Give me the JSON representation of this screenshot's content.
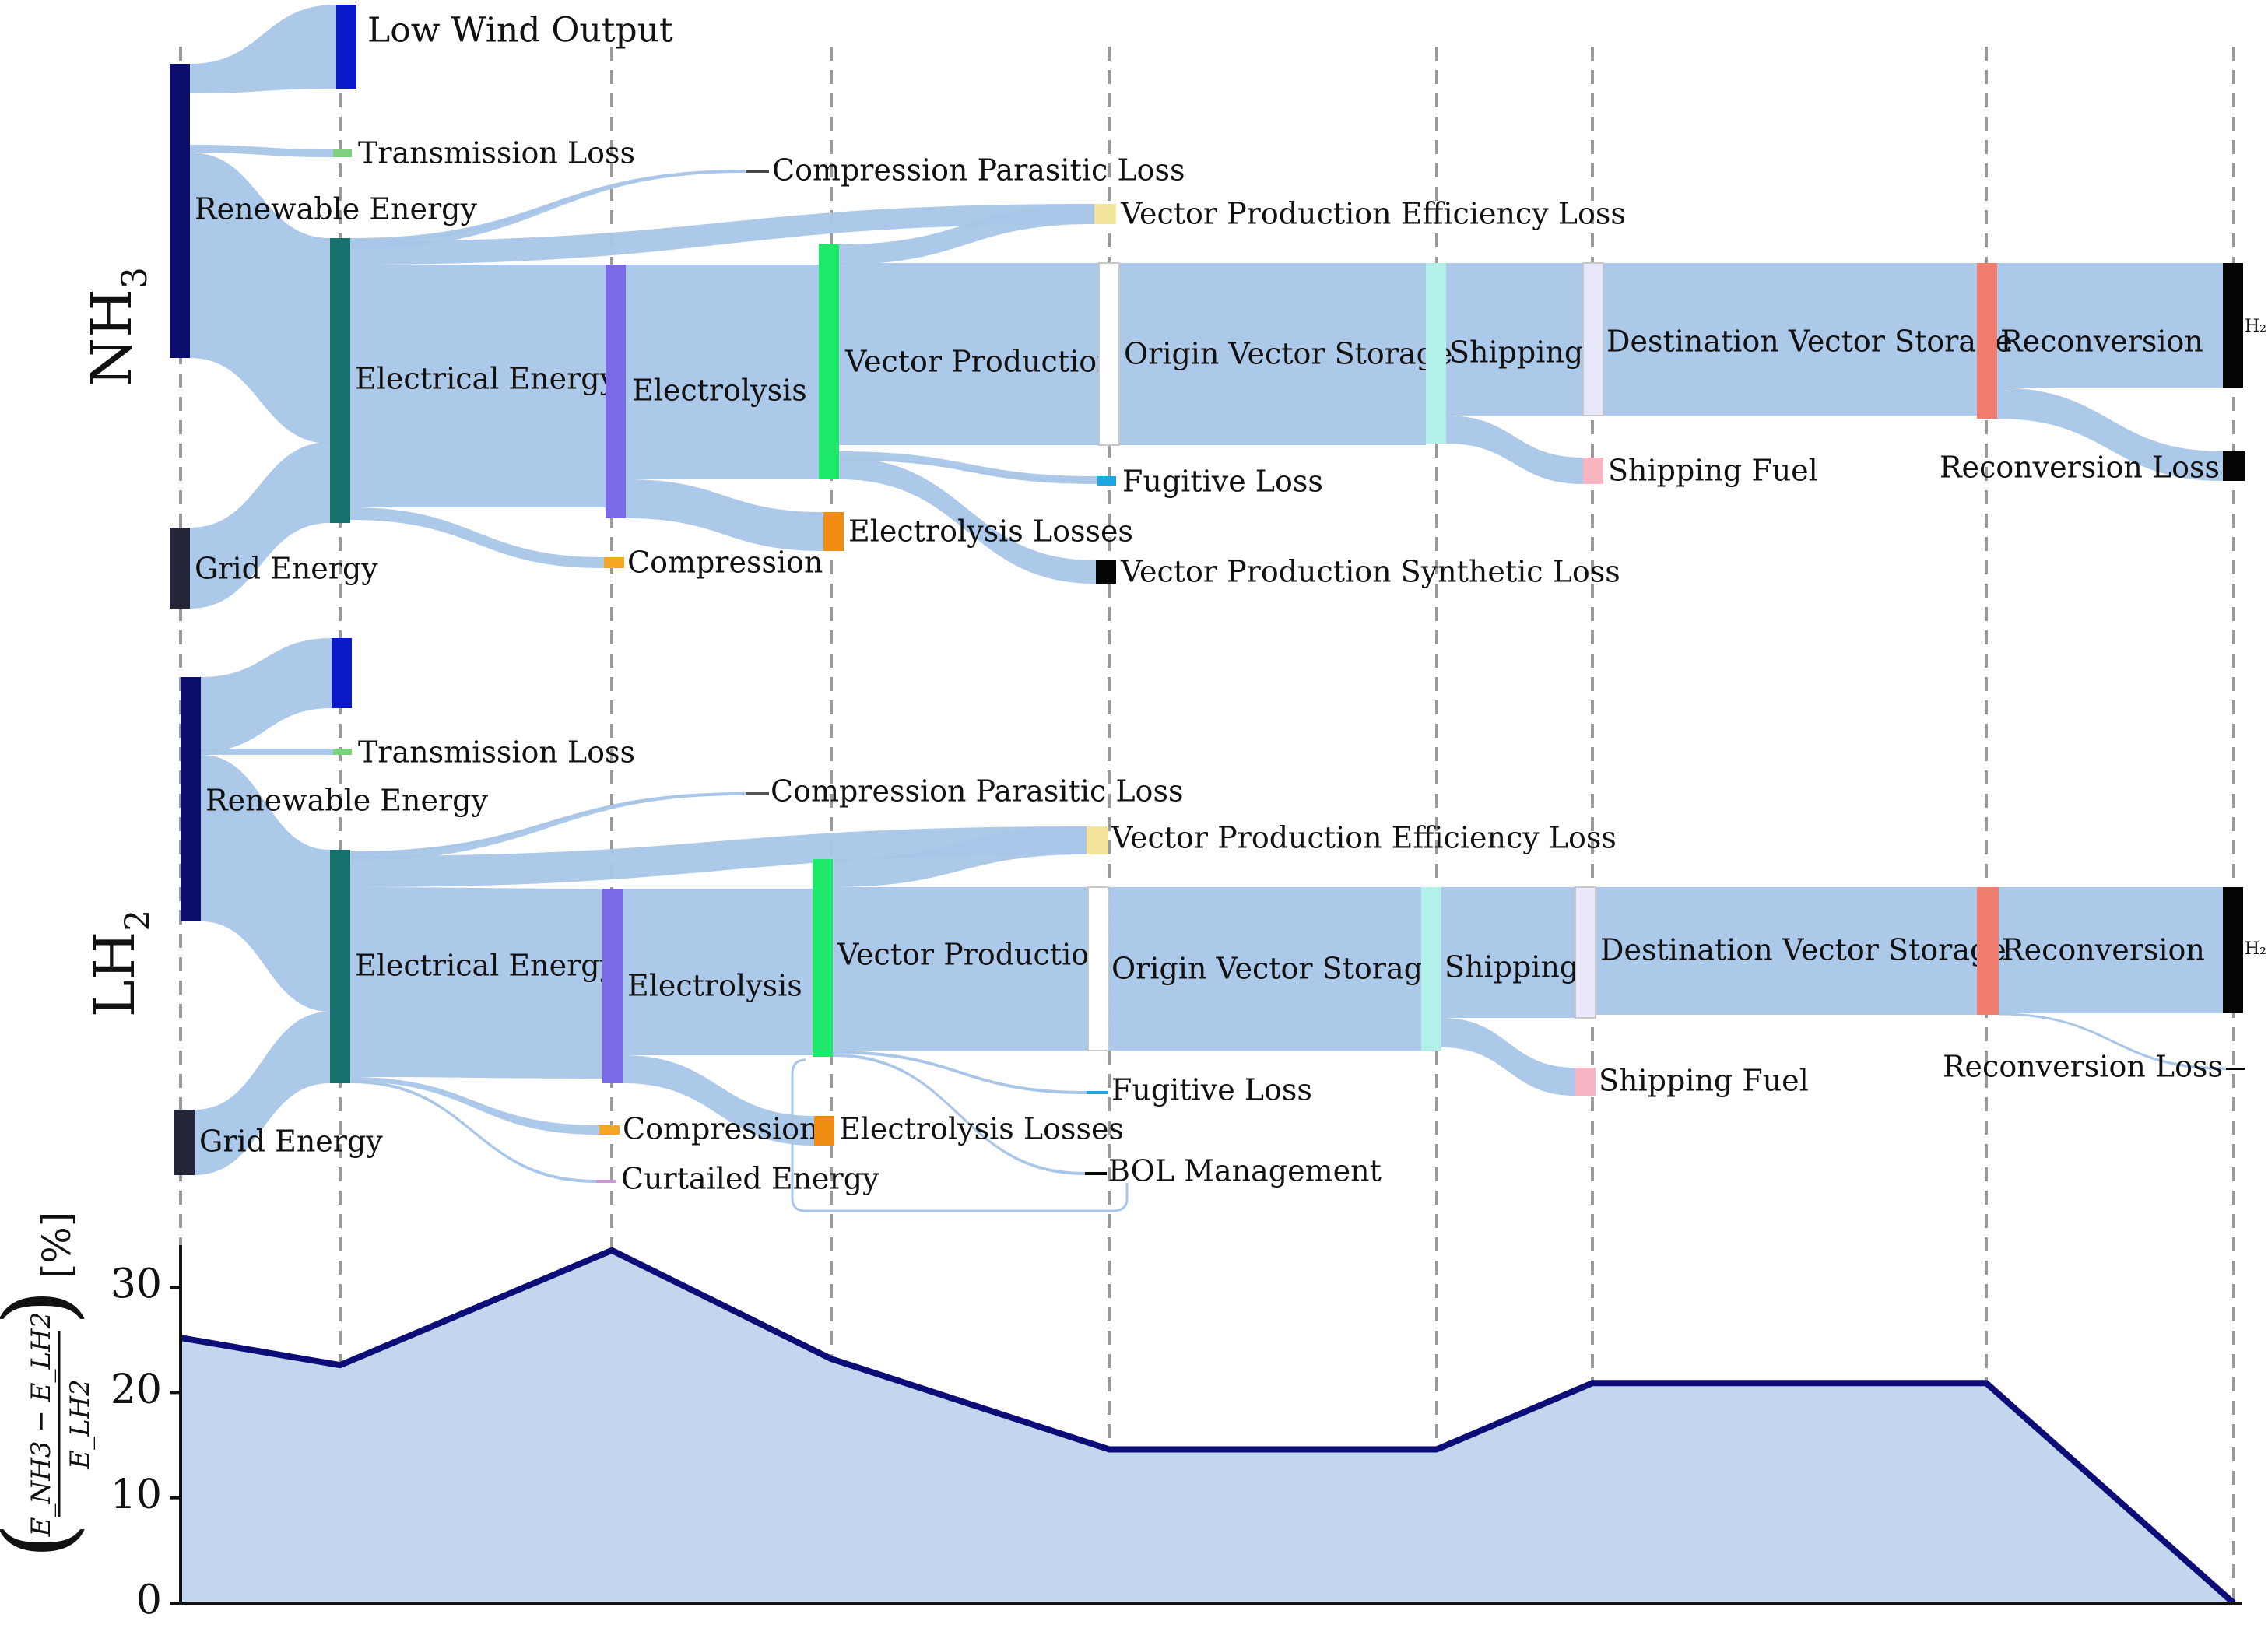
{
  "colors": {
    "flow": "#a9c6e8",
    "fill": "#c2d6ee",
    "line": "#0d0d78",
    "guide": "#9a9a9a",
    "axis": "#111111"
  },
  "diagrams": [
    {
      "id": "nh3",
      "ylabel_main": "NH",
      "ylabel_sub": "3",
      "nodes": [
        {
          "key": "ren",
          "label": "Renewable Energy",
          "color": "#0c0c6c"
        },
        {
          "key": "low",
          "label": "Low Wind Output",
          "color": "#0a19c8"
        },
        {
          "key": "trans",
          "label": "Transmission Loss",
          "color": "#7ed07e"
        },
        {
          "key": "grid",
          "label": "Grid Energy",
          "color": "#25253a"
        },
        {
          "key": "elec",
          "label": "Electrical Energy",
          "color": "#16706c"
        },
        {
          "key": "cpl",
          "label": "Compression Parasitic Loss",
          "color": "#555555"
        },
        {
          "key": "ely",
          "label": "Electrolysis",
          "color": "#7a6ae6"
        },
        {
          "key": "comp",
          "label": "Compression",
          "color": "#f5a623"
        },
        {
          "key": "vp",
          "label": "Vector Production",
          "color": "#1ee86a"
        },
        {
          "key": "elyl",
          "label": "Electrolysis Losses",
          "color": "#f08c12"
        },
        {
          "key": "vpe",
          "label": "Vector Production Efficiency Loss",
          "color": "#f2e49a"
        },
        {
          "key": "fug",
          "label": "Fugitive Loss",
          "color": "#1ea8e0"
        },
        {
          "key": "vps",
          "label": "Vector Production Synthetic Loss",
          "color": "#050505"
        },
        {
          "key": "ovs",
          "label": "Origin Vector Storage",
          "color": "#ffffff"
        },
        {
          "key": "ship",
          "label": "Shipping",
          "color": "#b2f0ea"
        },
        {
          "key": "fuel",
          "label": "Shipping Fuel",
          "color": "#f8b6c2"
        },
        {
          "key": "dvs",
          "label": "Destination Vector Storage",
          "color": "#e8e8fa"
        },
        {
          "key": "rec",
          "label": "Reconversion",
          "color": "#f07c70"
        },
        {
          "key": "recl",
          "label": "Reconversion Loss",
          "color": "#050505"
        },
        {
          "key": "h2",
          "label": "H₂",
          "color": "#050505"
        }
      ]
    },
    {
      "id": "lh2",
      "ylabel_main": "LH",
      "ylabel_sub": "2",
      "nodes": [
        {
          "key": "ren",
          "label": "Renewable Energy",
          "color": "#0c0c6c"
        },
        {
          "key": "low",
          "label": "",
          "color": "#0a19c8"
        },
        {
          "key": "trans",
          "label": "Transmission Loss",
          "color": "#7ed07e"
        },
        {
          "key": "grid",
          "label": "Grid Energy",
          "color": "#25253a"
        },
        {
          "key": "elec",
          "label": "Electrical Energy",
          "color": "#16706c"
        },
        {
          "key": "cpl",
          "label": "Compression Parasitic Loss",
          "color": "#555555"
        },
        {
          "key": "ely",
          "label": "Electrolysis",
          "color": "#7a6ae6"
        },
        {
          "key": "comp",
          "label": "Compression",
          "color": "#f5a623"
        },
        {
          "key": "curt",
          "label": "Curtailed Energy",
          "color": "#c89ad2"
        },
        {
          "key": "vp",
          "label": "Vector Production",
          "color": "#1ee86a"
        },
        {
          "key": "elyl",
          "label": "Electrolysis Losses",
          "color": "#f08c12"
        },
        {
          "key": "vpe",
          "label": "Vector Production Efficiency Loss",
          "color": "#f2e49a"
        },
        {
          "key": "fug",
          "label": "Fugitive Loss",
          "color": "#1ea8e0"
        },
        {
          "key": "bol",
          "label": "BOL Management",
          "color": "#050505"
        },
        {
          "key": "ovs",
          "label": "Origin Vector Storage",
          "color": "#ffffff"
        },
        {
          "key": "ship",
          "label": "Shipping",
          "color": "#b2f0ea"
        },
        {
          "key": "fuel",
          "label": "Shipping Fuel",
          "color": "#f8b6c2"
        },
        {
          "key": "dvs",
          "label": "Destination Vector Storage",
          "color": "#e8e8fa"
        },
        {
          "key": "rec",
          "label": "Reconversion",
          "color": "#f07c70"
        },
        {
          "key": "recl",
          "label": "Reconversion Loss",
          "color": "#050505"
        },
        {
          "key": "h2",
          "label": "H₂",
          "color": "#050505"
        }
      ]
    }
  ],
  "chart_data": {
    "type": "area",
    "title": "",
    "xlabel": "",
    "stages": [
      "Renewable Energy",
      "Electrical Energy",
      "Electrolysis",
      "Vector Production",
      "Origin Vector Storage",
      "Shipping",
      "Destination Vector Storage",
      "Reconversion",
      "H2"
    ],
    "values": [
      25.2,
      22.6,
      33.5,
      23.2,
      14.6,
      14.6,
      20.9,
      20.9,
      0.0
    ],
    "ylabel": "((E_NH3 − E_LH2) / E_LH2) [%]",
    "ylabel_unit": "[%]",
    "ylabel_num": "E_NH3 − E_LH2",
    "ylabel_den": "E_LH2",
    "ylim": [
      0,
      34
    ],
    "yticks": [
      "0",
      "10",
      "20",
      "30"
    ],
    "grid": false
  }
}
